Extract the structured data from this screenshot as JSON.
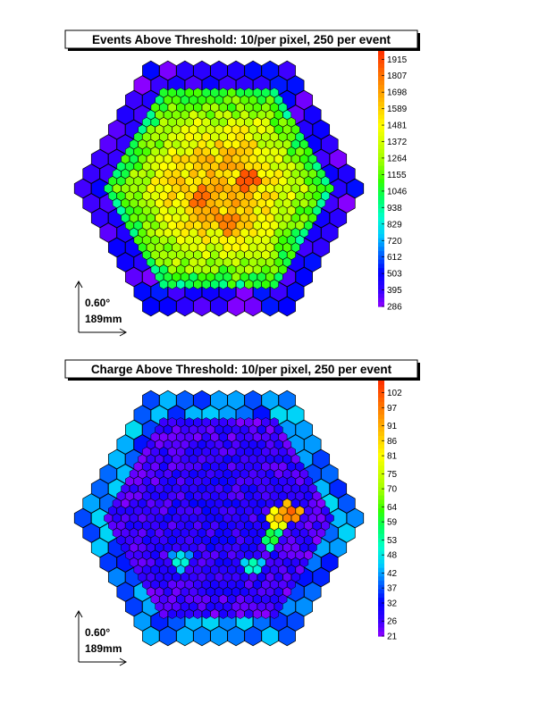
{
  "chart_data": [
    {
      "type": "heatmap",
      "title": "Events Above Threshold: 10/per pixel, 250 per event",
      "colorbar": {
        "ticks": [
          286,
          395,
          503,
          612,
          720,
          829,
          938,
          1046,
          1155,
          1264,
          1372,
          1481,
          1589,
          1698,
          1807,
          1915
        ],
        "range": [
          286,
          1970
        ],
        "palette": [
          "#9900ff",
          "#3300ff",
          "#0000ff",
          "#0066ff",
          "#00ccff",
          "#00ffcc",
          "#00ff66",
          "#33ff00",
          "#99ff00",
          "#ccff00",
          "#ffff00",
          "#ffcc00",
          "#ff9900",
          "#ff6600",
          "#ff3300"
        ]
      },
      "camera_pattern": {
        "outer_ring_min": 300,
        "outer_ring_max": 560,
        "inner_edge": 1050,
        "inner_center": 1650,
        "inner_peak": 1930,
        "hot_spots": [
          [
            0.3,
            -0.1,
            1900
          ],
          [
            -0.2,
            0.1,
            1850
          ],
          [
            0.1,
            0.35,
            1800
          ]
        ]
      },
      "scale_bar": {
        "angle": "0.60°",
        "length": "189mm"
      }
    },
    {
      "type": "heatmap",
      "title": "Charge Above Threshold: 10/per pixel, 250 per event",
      "colorbar": {
        "ticks": [
          21,
          26,
          32,
          37,
          42,
          48,
          53,
          59,
          64,
          70,
          75,
          81,
          86,
          91,
          97,
          102
        ],
        "range": [
          21,
          106
        ],
        "palette": [
          "#9900ff",
          "#3300ff",
          "#0000ff",
          "#0066ff",
          "#00ccff",
          "#00ffcc",
          "#00ff66",
          "#33ff00",
          "#99ff00",
          "#ccff00",
          "#ffff00",
          "#ffcc00",
          "#ff9900",
          "#ff6600",
          "#ff3300"
        ]
      },
      "camera_pattern": {
        "outer_ring_min": 34,
        "outer_ring_max": 47,
        "inner_edge": 26,
        "inner_center": 29,
        "inner_peak": 38,
        "hot_spots": [
          [
            0.75,
            -0.05,
            104
          ],
          [
            0.6,
            0.0,
            92
          ],
          [
            0.55,
            0.2,
            66
          ],
          [
            -0.4,
            0.45,
            56
          ],
          [
            0.35,
            0.5,
            58
          ]
        ]
      },
      "scale_bar": {
        "angle": "0.60°",
        "length": "189mm"
      }
    }
  ]
}
